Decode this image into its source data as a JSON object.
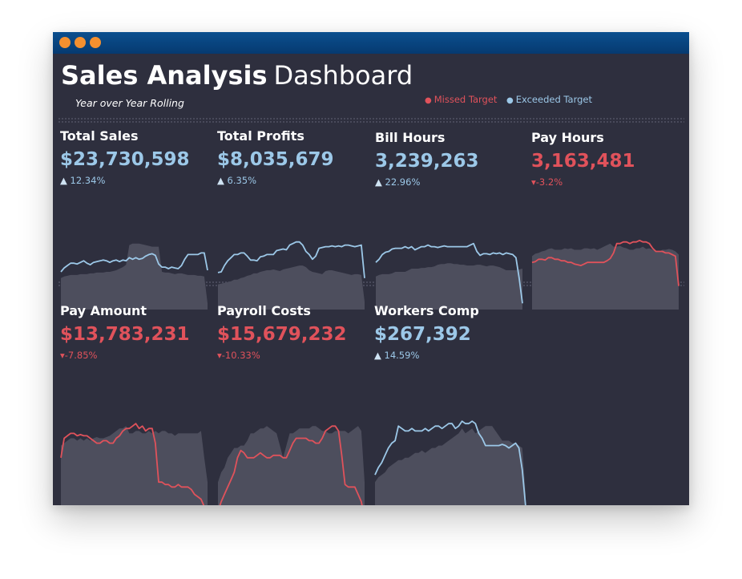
{
  "window": {
    "controls": [
      "close",
      "minimize",
      "maximize"
    ],
    "control_color": "#f5902f"
  },
  "header": {
    "title_bold": "Sales Analysis",
    "title_light": "Dashboard",
    "subtitle": "Year over Year Rolling"
  },
  "legend": {
    "missed": {
      "label": "Missed Target",
      "color": "#e0525b"
    },
    "exceeded": {
      "label": "Exceeded Target",
      "color": "#9cc8e8"
    }
  },
  "colors": {
    "background": "#2e2f3e",
    "area": "#4d4e5d",
    "good": "#9cc8e8",
    "bad": "#e0525b"
  },
  "kpis": [
    {
      "title": "Total Sales",
      "value": "$23,730,598",
      "delta": "12.34%",
      "trend": "up",
      "status": "exceeded",
      "area": [
        40,
        42,
        43,
        44,
        44,
        44,
        45,
        45,
        45,
        46,
        46,
        47,
        47,
        47,
        48,
        48,
        49,
        50,
        52,
        54,
        57,
        82,
        84,
        84,
        84,
        83,
        82,
        81,
        80,
        80,
        80,
        48,
        47,
        47,
        46,
        45,
        46,
        46,
        45,
        44,
        44,
        44,
        43,
        43,
        42,
        8
      ],
      "line": [
        48,
        53,
        56,
        59,
        59,
        58,
        60,
        62,
        59,
        57,
        60,
        61,
        62,
        63,
        62,
        60,
        62,
        63,
        61,
        63,
        62,
        66,
        64,
        66,
        64,
        65,
        68,
        70,
        71,
        69,
        58,
        54,
        54,
        52,
        54,
        53,
        52,
        56,
        64,
        70,
        70,
        70,
        70,
        72,
        72,
        50
      ]
    },
    {
      "title": "Total Profits",
      "value": "$8,035,679",
      "delta": "6.35%",
      "trend": "up",
      "status": "exceeded",
      "area": [
        32,
        33,
        34,
        35,
        36,
        38,
        38,
        40,
        41,
        43,
        44,
        46,
        46,
        48,
        49,
        50,
        50,
        51,
        50,
        49,
        51,
        52,
        53,
        54,
        55,
        56,
        56,
        54,
        50,
        48,
        47,
        46,
        45,
        49,
        50,
        50,
        49,
        48,
        47,
        46,
        45,
        44,
        45,
        45,
        44,
        10
      ],
      "line": [
        47,
        48,
        56,
        62,
        66,
        70,
        70,
        72,
        72,
        68,
        63,
        63,
        62,
        67,
        68,
        70,
        70,
        70,
        75,
        76,
        77,
        76,
        82,
        84,
        86,
        86,
        82,
        74,
        70,
        64,
        68,
        78,
        79,
        80,
        80,
        81,
        80,
        81,
        80,
        82,
        82,
        81,
        80,
        81,
        82,
        40
      ]
    },
    {
      "title": "Bill Hours",
      "value": "3,239,263",
      "delta": "22.96%",
      "trend": "up",
      "status": "exceeded",
      "area": [
        42,
        44,
        45,
        45,
        45,
        46,
        48,
        48,
        48,
        48,
        50,
        52,
        52,
        52,
        53,
        53,
        54,
        54,
        55,
        57,
        58,
        58,
        59,
        59,
        58,
        58,
        57,
        57,
        56,
        56,
        56,
        57,
        57,
        56,
        55,
        56,
        56,
        55,
        54,
        52,
        50,
        50,
        50,
        50,
        51,
        52
      ],
      "line": [
        60,
        64,
        70,
        73,
        74,
        77,
        78,
        78,
        78,
        80,
        78,
        80,
        76,
        78,
        80,
        80,
        82,
        80,
        80,
        79,
        80,
        81,
        80,
        80,
        80,
        80,
        80,
        80,
        80,
        82,
        84,
        74,
        69,
        71,
        71,
        70,
        72,
        71,
        72,
        70,
        72,
        71,
        70,
        66,
        40,
        8
      ]
    },
    {
      "title": "Pay Hours",
      "value": "3,163,481",
      "delta": "-3.2%",
      "trend": "down",
      "status": "missed",
      "area": [
        68,
        71,
        72,
        74,
        75,
        77,
        78,
        76,
        76,
        76,
        78,
        77,
        78,
        76,
        76,
        76,
        78,
        78,
        77,
        78,
        76,
        78,
        80,
        82,
        84,
        80,
        80,
        81,
        79,
        78,
        76,
        76,
        78,
        78,
        80,
        77,
        78,
        76,
        74,
        74,
        76,
        76,
        77,
        76,
        74,
        70
      ],
      "line": [
        60,
        61,
        64,
        64,
        63,
        66,
        66,
        64,
        64,
        62,
        62,
        60,
        60,
        58,
        57,
        56,
        58,
        60,
        60,
        60,
        60,
        60,
        60,
        62,
        65,
        72,
        84,
        84,
        86,
        86,
        84,
        86,
        86,
        88,
        86,
        86,
        84,
        78,
        74,
        74,
        74,
        72,
        72,
        70,
        68,
        30
      ]
    }
  ],
  "kpis2": [
    {
      "title": "Pay Amount",
      "value": "$13,783,231",
      "delta": "-7.85%",
      "trend": "down",
      "status": "missed",
      "area": [
        70,
        72,
        74,
        76,
        76,
        74,
        76,
        74,
        76,
        74,
        76,
        77,
        76,
        76,
        77,
        78,
        80,
        82,
        84,
        84,
        86,
        80,
        80,
        82,
        82,
        80,
        80,
        82,
        80,
        82,
        80,
        82,
        82,
        80,
        80,
        78,
        80,
        80,
        80,
        80,
        80,
        80,
        80,
        82,
        60,
        40
      ],
      "line": [
        60,
        76,
        78,
        80,
        80,
        78,
        79,
        78,
        78,
        76,
        74,
        72,
        72,
        74,
        74,
        72,
        72,
        76,
        78,
        82,
        84,
        84,
        86,
        88,
        84,
        86,
        82,
        84,
        84,
        72,
        40,
        40,
        38,
        38,
        36,
        36,
        38,
        36,
        36,
        36,
        34,
        30,
        28,
        26,
        20,
        8
      ]
    },
    {
      "title": "Payroll Costs",
      "value": "$15,679,232",
      "delta": "-10.33%",
      "trend": "down",
      "status": "missed",
      "area": [
        40,
        48,
        52,
        60,
        64,
        68,
        68,
        70,
        70,
        74,
        80,
        80,
        82,
        84,
        84,
        86,
        84,
        82,
        80,
        70,
        60,
        70,
        80,
        80,
        82,
        84,
        84,
        84,
        84,
        86,
        86,
        84,
        82,
        82,
        80,
        80,
        82,
        82,
        82,
        82,
        80,
        82,
        84,
        86,
        82,
        40
      ],
      "line": [
        16,
        24,
        30,
        36,
        42,
        48,
        60,
        66,
        64,
        60,
        60,
        60,
        62,
        64,
        62,
        60,
        60,
        62,
        62,
        62,
        60,
        60,
        66,
        72,
        76,
        76,
        76,
        76,
        74,
        74,
        72,
        72,
        76,
        82,
        84,
        86,
        86,
        82,
        62,
        38,
        36,
        36,
        36,
        30,
        24,
        10
      ]
    },
    {
      "title": "Workers Comp",
      "value": "$267,392",
      "delta": "14.59%",
      "trend": "up",
      "status": "exceeded",
      "area": [
        40,
        44,
        46,
        48,
        52,
        54,
        56,
        58,
        58,
        60,
        60,
        62,
        64,
        64,
        66,
        64,
        66,
        68,
        68,
        70,
        70,
        72,
        74,
        76,
        78,
        80,
        84,
        80,
        82,
        84,
        80,
        82,
        84,
        86,
        86,
        86,
        82,
        78,
        74,
        74,
        74,
        72,
        72,
        70,
        68,
        30
      ],
      "line": [
        46,
        52,
        56,
        62,
        68,
        72,
        74,
        86,
        84,
        82,
        82,
        84,
        82,
        82,
        82,
        84,
        82,
        84,
        86,
        86,
        84,
        86,
        88,
        88,
        84,
        86,
        90,
        88,
        88,
        90,
        88,
        80,
        76,
        70,
        70,
        70,
        70,
        70,
        71,
        70,
        68,
        70,
        72,
        68,
        50,
        20
      ]
    }
  ]
}
